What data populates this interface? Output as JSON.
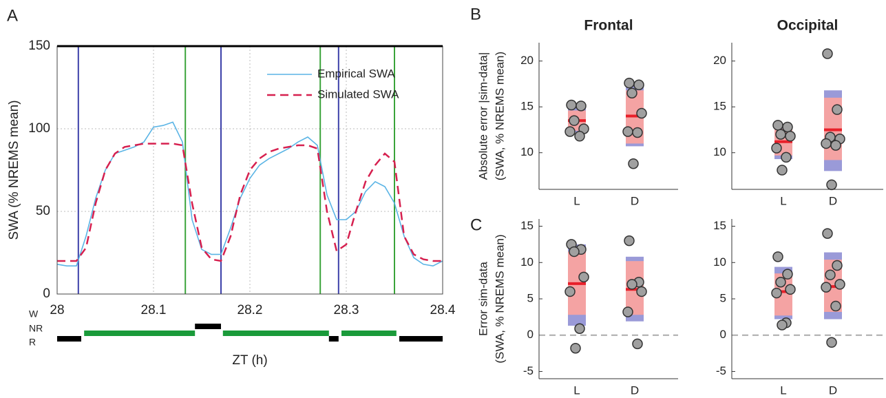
{
  "chart_data": [
    {
      "type": "line",
      "panel": "A",
      "xlabel": "ZT (h)",
      "ylabel": "SWA (% NREMS mean)",
      "x": [
        28.0,
        28.01,
        28.02,
        28.03,
        28.04,
        28.05,
        28.06,
        28.07,
        28.08,
        28.09,
        28.1,
        28.11,
        28.12,
        28.13,
        28.14,
        28.15,
        28.16,
        28.17,
        28.18,
        28.19,
        28.2,
        28.21,
        28.22,
        28.23,
        28.24,
        28.25,
        28.26,
        28.27,
        28.28,
        28.29,
        28.3,
        28.31,
        28.32,
        28.33,
        28.34,
        28.35,
        28.36,
        28.37,
        28.38,
        28.39,
        28.4
      ],
      "series": [
        {
          "name": "Empirical SWA",
          "color": "#5ab4e5",
          "dash": false,
          "values": [
            18,
            17,
            17,
            35,
            58,
            75,
            85,
            87,
            89,
            92,
            101,
            102,
            104,
            92,
            45,
            27,
            24,
            24,
            40,
            58,
            70,
            78,
            82,
            85,
            88,
            92,
            95,
            90,
            60,
            45,
            45,
            50,
            62,
            68,
            65,
            55,
            35,
            22,
            18,
            17,
            20
          ]
        },
        {
          "name": "Simulated SWA",
          "color": "#d6204f",
          "dash": true,
          "values": [
            20,
            20,
            20,
            28,
            55,
            75,
            85,
            89,
            90,
            91,
            91,
            91,
            91,
            90,
            55,
            28,
            21,
            20,
            35,
            60,
            75,
            82,
            86,
            88,
            89,
            90,
            90,
            88,
            50,
            26,
            30,
            50,
            68,
            78,
            85,
            80,
            35,
            24,
            21,
            20,
            20
          ]
        }
      ],
      "xlim": [
        28,
        28.4
      ],
      "xticks": [
        28,
        28.1,
        28.2,
        28.3,
        28.4
      ],
      "ylim": [
        0,
        150
      ],
      "yticks": [
        0,
        50,
        100,
        150
      ],
      "grid": true,
      "legend": "upper right",
      "vlines": [
        {
          "x": 28.022,
          "color": "#3b3fa8"
        },
        {
          "x": 28.133,
          "color": "#3aa33a"
        },
        {
          "x": 28.17,
          "color": "#3b3fa8"
        },
        {
          "x": 28.273,
          "color": "#3aa33a"
        },
        {
          "x": 28.292,
          "color": "#3b3fa8"
        },
        {
          "x": 28.35,
          "color": "#3aa33a"
        }
      ],
      "hypnogram": {
        "states": [
          "W",
          "NR",
          "R"
        ],
        "colors": {
          "W": "#000000",
          "NR": "#1a9a3a",
          "R": "#000000"
        },
        "segments": [
          {
            "start": 28.0,
            "end": 28.025,
            "state": "R"
          },
          {
            "start": 28.028,
            "end": 28.143,
            "state": "NR"
          },
          {
            "start": 28.143,
            "end": 28.17,
            "state": "W"
          },
          {
            "start": 28.172,
            "end": 28.282,
            "state": "NR"
          },
          {
            "start": 28.282,
            "end": 28.292,
            "state": "R"
          },
          {
            "start": 28.295,
            "end": 28.352,
            "state": "NR"
          },
          {
            "start": 28.355,
            "end": 28.4,
            "state": "R"
          }
        ]
      }
    },
    {
      "type": "strip",
      "panel": "B",
      "title": "Frontal",
      "ylabel": [
        "Absolute error |sim-data|",
        "(SWA, % NREMS mean)"
      ],
      "categories": [
        "L",
        "D"
      ],
      "ylim": [
        6,
        22
      ],
      "yticks": [
        10,
        15,
        20
      ],
      "groups": [
        {
          "points": [
            15.2,
            15.1,
            13.5,
            12.6,
            12.3,
            11.8
          ],
          "mean": 13.5,
          "inner": [
            12.4,
            14.6
          ],
          "outer": [
            12.2,
            15
          ]
        },
        {
          "points": [
            17.6,
            17.4,
            16.5,
            14.3,
            12.3,
            12.2,
            8.8
          ],
          "mean": 14,
          "inner": [
            11,
            16.8
          ],
          "outer": [
            10.7,
            17.3
          ]
        }
      ]
    },
    {
      "type": "strip",
      "title": "Occipital",
      "categories": [
        "L",
        "D"
      ],
      "ylim": [
        6,
        22
      ],
      "yticks": [
        10,
        15,
        20
      ],
      "groups": [
        {
          "points": [
            13,
            12.8,
            12,
            11.8,
            10.5,
            9.5,
            8.1
          ],
          "mean": 11.2,
          "inner": [
            9.7,
            12.6
          ],
          "outer": [
            9.3,
            13
          ]
        },
        {
          "points": [
            20.8,
            14.7,
            11.7,
            11.5,
            11,
            10.8,
            6.5
          ],
          "mean": 12.5,
          "inner": [
            9.2,
            16
          ],
          "outer": [
            8,
            16.8
          ]
        }
      ]
    },
    {
      "type": "strip",
      "panel": "C",
      "ylabel": [
        "Error sim-data",
        "(SWA, % NREMS mean)"
      ],
      "categories": [
        "L",
        "D"
      ],
      "ylim": [
        -6,
        16
      ],
      "yticks": [
        -5,
        0,
        5,
        10,
        15
      ],
      "refline": 0,
      "groups": [
        {
          "points": [
            12.5,
            11.8,
            11.5,
            8,
            6,
            0.9,
            -1.8
          ],
          "mean": 7.1,
          "inner": [
            2.8,
            11.5
          ],
          "outer": [
            1.3,
            12.5
          ]
        },
        {
          "points": [
            13,
            7.3,
            7,
            6,
            3.2,
            -1.2
          ],
          "mean": 6.3,
          "inner": [
            2.8,
            10.2
          ],
          "outer": [
            1.9,
            10.8
          ]
        }
      ]
    },
    {
      "type": "strip",
      "categories": [
        "L",
        "D"
      ],
      "ylim": [
        -6,
        16
      ],
      "yticks": [
        -5,
        0,
        5,
        10,
        15
      ],
      "refline": 0,
      "groups": [
        {
          "points": [
            10.8,
            8.4,
            7.3,
            6.3,
            5.8,
            1.7,
            1.4
          ],
          "mean": 6,
          "inner": [
            2.7,
            8.5
          ],
          "outer": [
            2.2,
            9.4
          ]
        },
        {
          "points": [
            14,
            9.6,
            8.3,
            7,
            6.6,
            4,
            -1
          ],
          "mean": 6.7,
          "inner": [
            3.2,
            10.4
          ],
          "outer": [
            2.2,
            11.4
          ]
        }
      ]
    }
  ]
}
